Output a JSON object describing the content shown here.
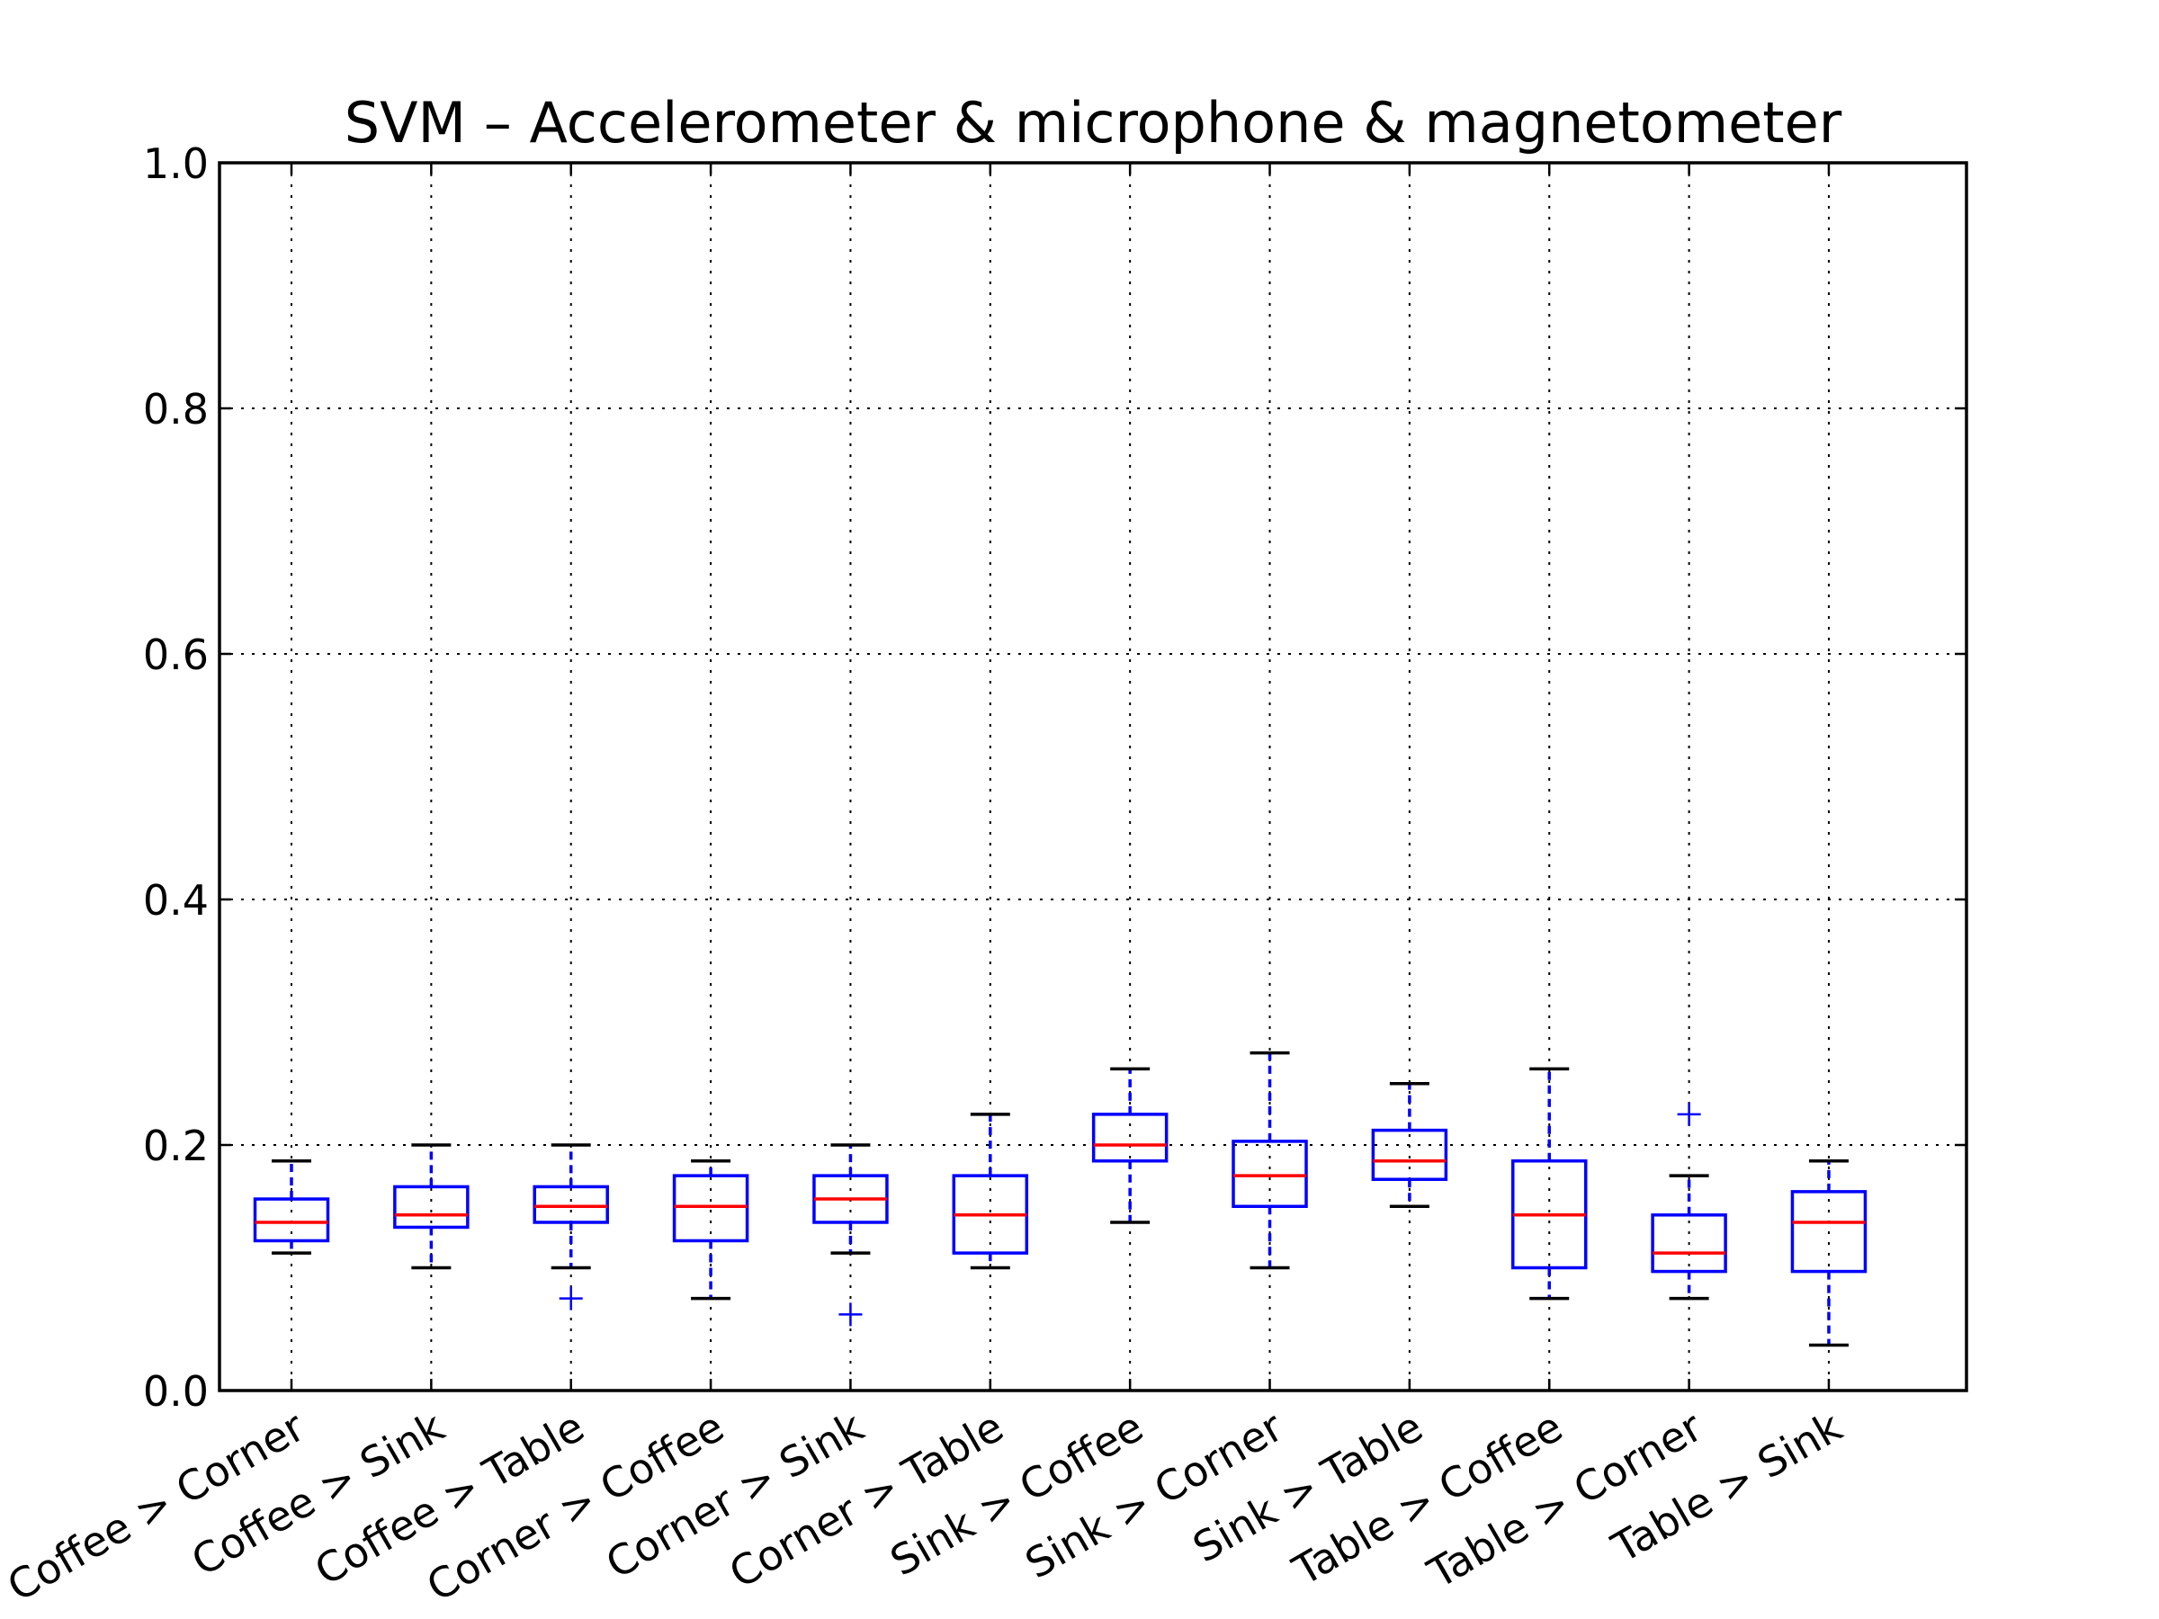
{
  "chart_data": {
    "type": "box",
    "title": "SVM – Accelerometer & microphone & magnetometer",
    "xlabel": "",
    "ylabel": "",
    "ylim": [
      0.0,
      1.0
    ],
    "yticks": [
      "0.0",
      "0.2",
      "0.4",
      "0.6",
      "0.8",
      "1.0"
    ],
    "grid": true,
    "colors": {
      "box": "#0000ff",
      "median": "#ff0000",
      "cap": "#000000",
      "flier": "#0000ff"
    },
    "categories": [
      "Coffee > Corner",
      "Coffee > Sink",
      "Coffee > Table",
      "Corner > Coffee",
      "Corner > Sink",
      "Corner > Table",
      "Sink > Coffee",
      "Sink > Corner",
      "Sink > Table",
      "Table > Coffee",
      "Table > Corner",
      "Table > Sink"
    ],
    "boxes": [
      {
        "whislo": 0.112,
        "q1": 0.122,
        "med": 0.137,
        "q3": 0.156,
        "whishi": 0.187,
        "fliers": []
      },
      {
        "whislo": 0.1,
        "q1": 0.133,
        "med": 0.143,
        "q3": 0.166,
        "whishi": 0.2,
        "fliers": []
      },
      {
        "whislo": 0.1,
        "q1": 0.137,
        "med": 0.15,
        "q3": 0.166,
        "whishi": 0.2,
        "fliers": [
          0.075
        ]
      },
      {
        "whislo": 0.075,
        "q1": 0.122,
        "med": 0.15,
        "q3": 0.175,
        "whishi": 0.187,
        "fliers": []
      },
      {
        "whislo": 0.112,
        "q1": 0.137,
        "med": 0.156,
        "q3": 0.175,
        "whishi": 0.2,
        "fliers": [
          0.062
        ]
      },
      {
        "whislo": 0.1,
        "q1": 0.112,
        "med": 0.143,
        "q3": 0.175,
        "whishi": 0.225,
        "fliers": []
      },
      {
        "whislo": 0.137,
        "q1": 0.187,
        "med": 0.2,
        "q3": 0.225,
        "whishi": 0.262,
        "fliers": []
      },
      {
        "whislo": 0.1,
        "q1": 0.15,
        "med": 0.175,
        "q3": 0.203,
        "whishi": 0.275,
        "fliers": []
      },
      {
        "whislo": 0.15,
        "q1": 0.172,
        "med": 0.187,
        "q3": 0.212,
        "whishi": 0.25,
        "fliers": []
      },
      {
        "whislo": 0.075,
        "q1": 0.1,
        "med": 0.143,
        "q3": 0.187,
        "whishi": 0.262,
        "fliers": []
      },
      {
        "whislo": 0.075,
        "q1": 0.097,
        "med": 0.112,
        "q3": 0.143,
        "whishi": 0.175,
        "fliers": [
          0.225
        ]
      },
      {
        "whislo": 0.037,
        "q1": 0.097,
        "med": 0.137,
        "q3": 0.162,
        "whishi": 0.187,
        "fliers": []
      }
    ]
  }
}
